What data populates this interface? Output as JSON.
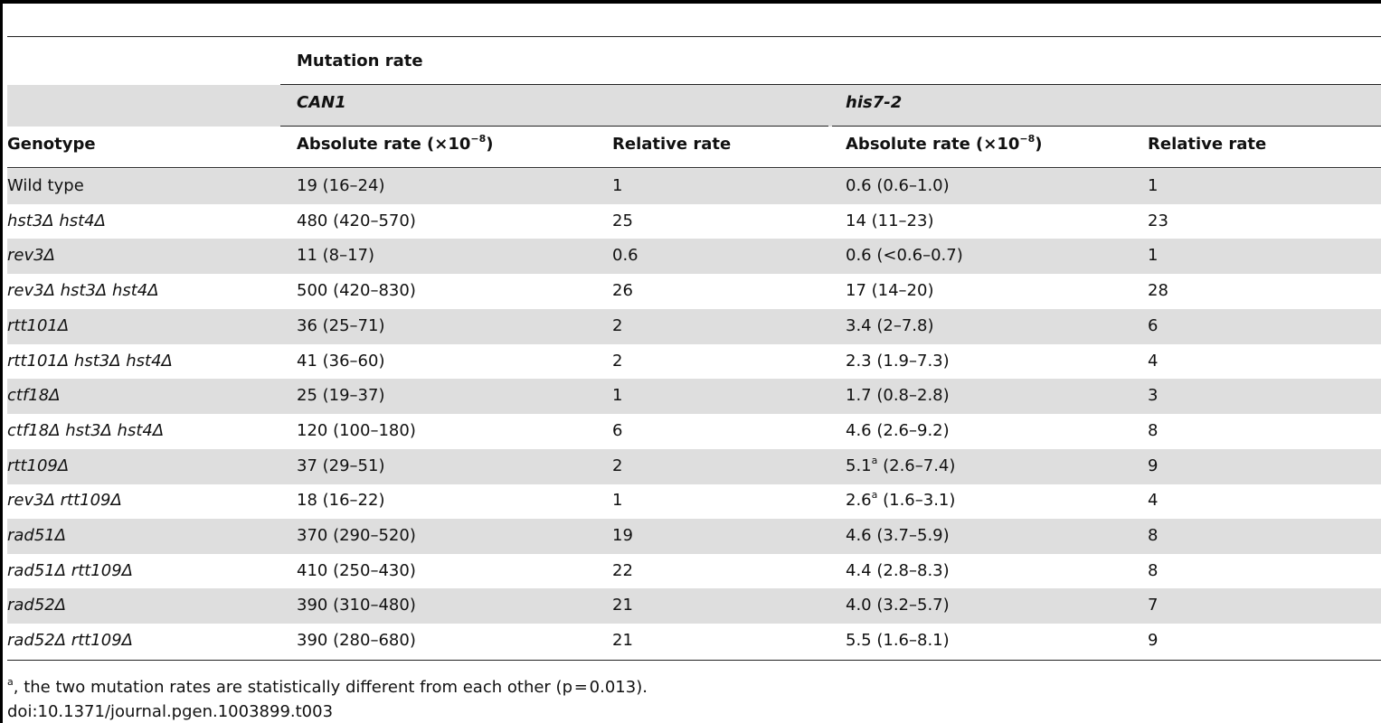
{
  "table": {
    "group_header": "Mutation rate",
    "loci": [
      "CAN1",
      "his7-2"
    ],
    "col_genotype": "Genotype",
    "col_absolute_prefix": "Absolute rate (×10",
    "col_absolute_exp": "−8",
    "col_absolute_suffix": ")",
    "col_relative": "Relative rate",
    "rows": [
      {
        "genotype": "Wild type",
        "can1_abs": "19 (16–24)",
        "can1_rel": "1",
        "his_abs": "0.6 (0.6–1.0)",
        "his_sup": "",
        "his_range": "",
        "his_rel": "1"
      },
      {
        "genotype": "hst3Δ hst4Δ",
        "can1_abs": "480 (420–570)",
        "can1_rel": "25",
        "his_abs": "14 (11–23)",
        "his_sup": "",
        "his_range": "",
        "his_rel": "23"
      },
      {
        "genotype": "rev3Δ",
        "can1_abs": "11 (8–17)",
        "can1_rel": "0.6",
        "his_abs": "0.6 (<0.6–0.7)",
        "his_sup": "",
        "his_range": "",
        "his_rel": "1"
      },
      {
        "genotype": "rev3Δ hst3Δ hst4Δ",
        "can1_abs": "500 (420–830)",
        "can1_rel": "26",
        "his_abs": "17 (14–20)",
        "his_sup": "",
        "his_range": "",
        "his_rel": "28"
      },
      {
        "genotype": "rtt101Δ",
        "can1_abs": "36 (25–71)",
        "can1_rel": "2",
        "his_abs": "3.4 (2–7.8)",
        "his_sup": "",
        "his_range": "",
        "his_rel": "6"
      },
      {
        "genotype": "rtt101Δ hst3Δ hst4Δ",
        "can1_abs": "41 (36–60)",
        "can1_rel": "2",
        "his_abs": "2.3 (1.9–7.3)",
        "his_sup": "",
        "his_range": "",
        "his_rel": "4"
      },
      {
        "genotype": "ctf18Δ",
        "can1_abs": "25 (19–37)",
        "can1_rel": "1",
        "his_abs": "1.7 (0.8–2.8)",
        "his_sup": "",
        "his_range": "",
        "his_rel": "3"
      },
      {
        "genotype": "ctf18Δ hst3Δ hst4Δ",
        "can1_abs": "120 (100–180)",
        "can1_rel": "6",
        "his_abs": "4.6 (2.6–9.2)",
        "his_sup": "",
        "his_range": "",
        "his_rel": "8"
      },
      {
        "genotype": "rtt109Δ",
        "can1_abs": "37 (29–51)",
        "can1_rel": "2",
        "his_abs": "5.1",
        "his_sup": "a",
        "his_range": " (2.6–7.4)",
        "his_rel": "9"
      },
      {
        "genotype": "rev3Δ rtt109Δ",
        "can1_abs": "18 (16–22)",
        "can1_rel": "1",
        "his_abs": "2.6",
        "his_sup": "a",
        "his_range": " (1.6–3.1)",
        "his_rel": "4"
      },
      {
        "genotype": "rad51Δ",
        "can1_abs": "370 (290–520)",
        "can1_rel": "19",
        "his_abs": "4.6 (3.7–5.9)",
        "his_sup": "",
        "his_range": "",
        "his_rel": "8"
      },
      {
        "genotype": "rad51Δ rtt109Δ",
        "can1_abs": "410 (250–430)",
        "can1_rel": "22",
        "his_abs": "4.4 (2.8–8.3)",
        "his_sup": "",
        "his_range": "",
        "his_rel": "8"
      },
      {
        "genotype": "rad52Δ",
        "can1_abs": "390 (310–480)",
        "can1_rel": "21",
        "his_abs": "4.0 (3.2–5.7)",
        "his_sup": "",
        "his_range": "",
        "his_rel": "7"
      },
      {
        "genotype": "rad52Δ rtt109Δ",
        "can1_abs": "390 (280–680)",
        "can1_rel": "21",
        "his_abs": "5.5 (1.6–8.1)",
        "his_sup": "",
        "his_range": "",
        "his_rel": "9"
      }
    ]
  },
  "footnote": {
    "marker": "a",
    "text": ", the two mutation rates are statistically different from each other (p = 0.013)."
  },
  "doi": "doi:10.1371/journal.pgen.1003899.t003"
}
